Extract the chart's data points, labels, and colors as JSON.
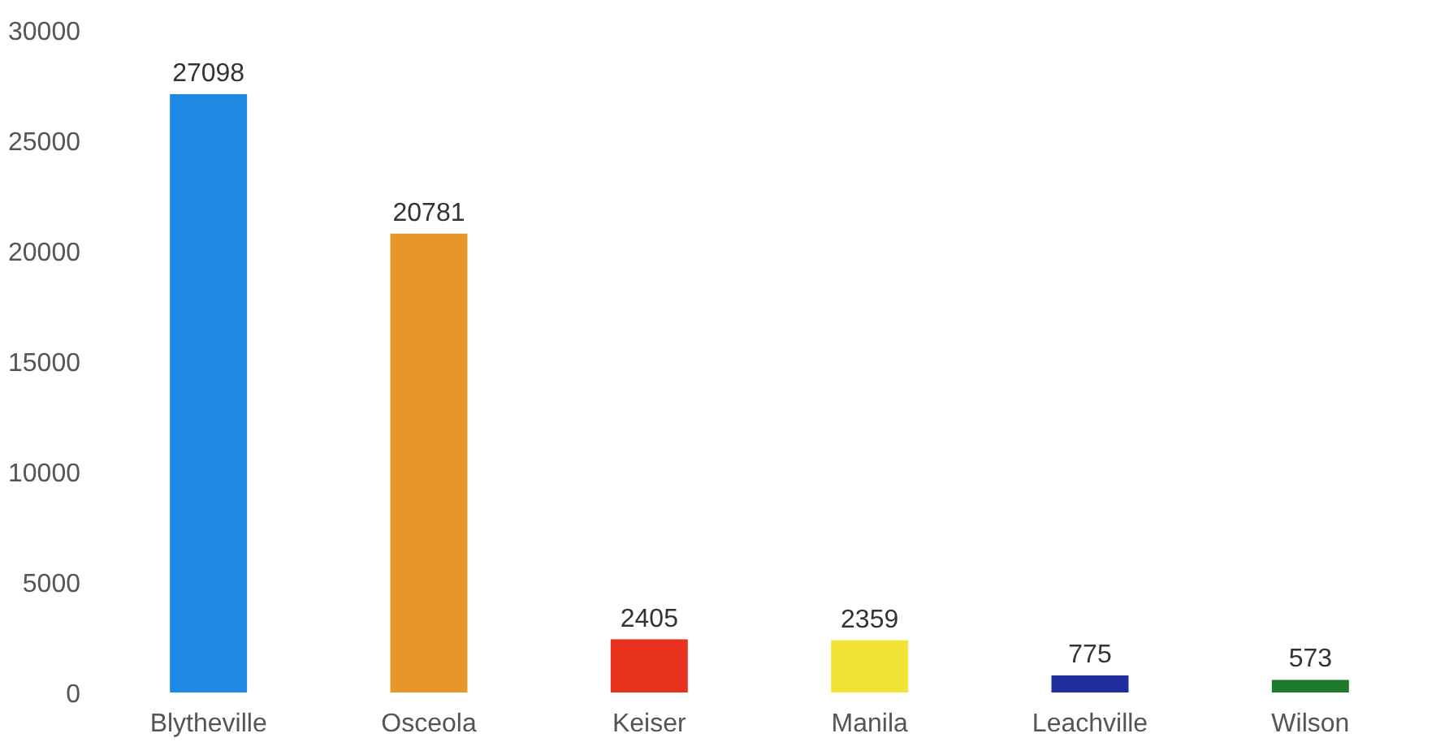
{
  "chart_data": {
    "type": "bar",
    "categories": [
      "Blytheville",
      "Osceola",
      "Keiser",
      "Manila",
      "Leachville",
      "Wilson"
    ],
    "values": [
      27098,
      20781,
      2405,
      2359,
      775,
      573
    ],
    "colors": [
      "#1e88e5",
      "#e8962a",
      "#e8321e",
      "#f2e335",
      "#1f2fa0",
      "#1e7a2a"
    ],
    "ylim": [
      0,
      30000
    ],
    "yticks": [
      0,
      5000,
      10000,
      15000,
      20000,
      25000,
      30000
    ],
    "grid": false,
    "data_labels": true
  }
}
